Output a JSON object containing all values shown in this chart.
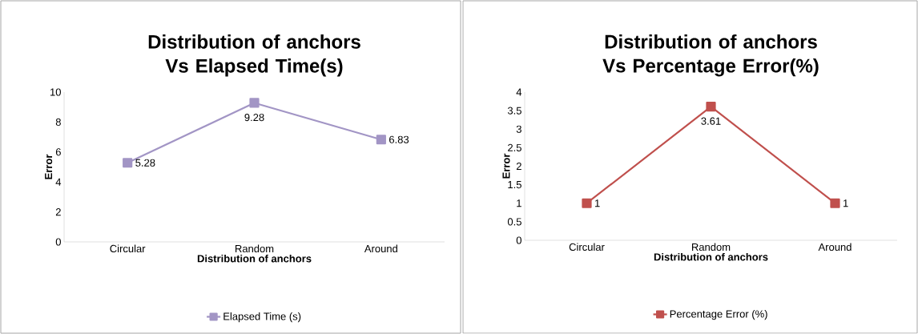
{
  "chart_data": [
    {
      "type": "line",
      "title": "Distribution of anchors Vs Elapsed Time(s)",
      "xlabel": "Distribution of anchors",
      "ylabel": "Error",
      "categories": [
        "Circular",
        "Random",
        "Around"
      ],
      "ylim": [
        0,
        10
      ],
      "yticks": [
        0,
        2,
        4,
        6,
        8,
        10
      ],
      "legend": "bottom",
      "marker": "square",
      "series": [
        {
          "name": "Elapsed Time (s)",
          "color": "#a295c5",
          "values": [
            5.28,
            9.28,
            6.83
          ],
          "value_labels": [
            "5.28",
            "9.28",
            "6.83"
          ]
        }
      ]
    },
    {
      "type": "line",
      "title": "Distribution of anchors Vs Percentage Error(%)",
      "xlabel": "Distribution of anchors",
      "ylabel": "Error",
      "categories": [
        "Circular",
        "Random",
        "Around"
      ],
      "ylim": [
        0,
        4
      ],
      "yticks": [
        0,
        0.5,
        1,
        1.5,
        2,
        2.5,
        3,
        3.5,
        4
      ],
      "legend": "bottom",
      "marker": "square",
      "series": [
        {
          "name": "Percentage Error (%)",
          "color": "#c0504d",
          "values": [
            1,
            3.61,
            1
          ],
          "value_labels": [
            "1",
            "3.61",
            "1"
          ]
        }
      ]
    }
  ]
}
